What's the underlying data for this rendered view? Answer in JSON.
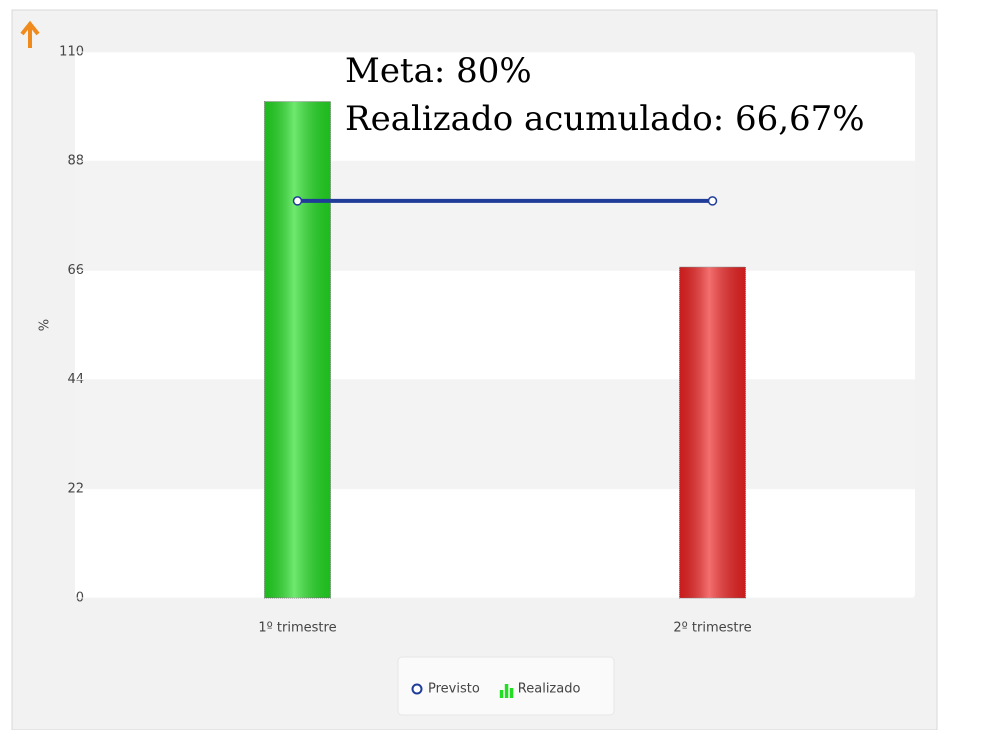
{
  "chart_data": {
    "type": "combo",
    "annotations": [
      "Meta: 80%",
      "Realizado acumulado: 66,67%"
    ],
    "y_label": "%",
    "categories": [
      "1º trimestre",
      "2º trimestre"
    ],
    "series": [
      {
        "name": "Previsto",
        "type": "line",
        "color": "#1f3c99",
        "values": [
          80,
          80
        ]
      },
      {
        "name": "Realizado",
        "type": "bar",
        "colors": [
          "#22dd22",
          "#ee2222"
        ],
        "values": [
          100,
          66.67
        ]
      }
    ],
    "ylim": [
      0,
      110
    ],
    "yticks": [
      0,
      22,
      44,
      66,
      88,
      110
    ],
    "grid": true,
    "legend": "bottom"
  }
}
